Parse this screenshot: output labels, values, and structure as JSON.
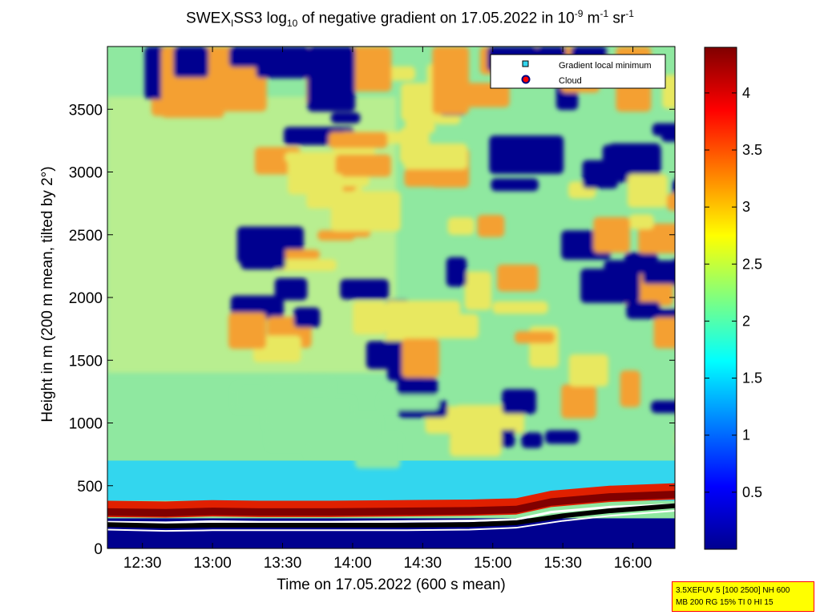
{
  "title": {
    "prefix": "SWEX",
    "sub1": "I",
    "mid": "SS3 log",
    "sub2": "10",
    "rest": " of negative gradient on 17.05.2022 in 10",
    "sup1": "-9",
    "unit1": " m",
    "sup2": "-1",
    "unit2": " sr",
    "sup3": "-1"
  },
  "xlabel": "Time on 17.05.2022 (600 s mean)",
  "ylabel": "Height in m (200 m mean, tilted by 2°)",
  "legend": {
    "min_label": "Gradient local minimum",
    "cloud_label": "Cloud"
  },
  "info": {
    "line1": "3.5XEFUV 5 [100 2500] NH 600",
    "line2": "MB 200 RG 15% TI 0 HI 15"
  },
  "colors": {
    "dark_blue": "#00008f",
    "cyan": "#33d6ee",
    "light_green": "#8fe8a0",
    "yellow": "#e8e860",
    "orange": "#f4a030",
    "red": "#e02000",
    "dark_red": "#800000",
    "white": "#ffffff",
    "black": "#000000"
  },
  "chart_data": {
    "type": "heatmap",
    "x_ticks": [
      "12:30",
      "13:00",
      "13:30",
      "14:00",
      "14:30",
      "15:00",
      "15:30",
      "16:00"
    ],
    "x_tick_minutes": [
      750,
      780,
      810,
      840,
      870,
      900,
      930,
      960
    ],
    "xlim_minutes": [
      735,
      978
    ],
    "y_ticks": [
      0,
      500,
      1000,
      1500,
      2000,
      2500,
      3000,
      3500
    ],
    "ylim": [
      0,
      4000
    ],
    "colorbar": {
      "ticks": [
        "0.5",
        "1",
        "1.5",
        "2",
        "2.5",
        "3",
        "3.5",
        "4"
      ],
      "tick_values": [
        0.5,
        1,
        1.5,
        2,
        2.5,
        3,
        3.5,
        4
      ],
      "range": [
        0,
        4.4
      ],
      "colormap": "jet"
    },
    "gradient_minimum_height": [
      {
        "t": 735,
        "h": 190
      },
      {
        "t": 760,
        "h": 180
      },
      {
        "t": 780,
        "h": 185
      },
      {
        "t": 800,
        "h": 185
      },
      {
        "t": 830,
        "h": 185
      },
      {
        "t": 860,
        "h": 185
      },
      {
        "t": 890,
        "h": 190
      },
      {
        "t": 910,
        "h": 205
      },
      {
        "t": 930,
        "h": 260
      },
      {
        "t": 950,
        "h": 300
      },
      {
        "t": 978,
        "h": 340
      }
    ],
    "cloud_base_height": [
      {
        "t": 735,
        "h": 360
      },
      {
        "t": 760,
        "h": 355
      },
      {
        "t": 780,
        "h": 365
      },
      {
        "t": 800,
        "h": 360
      },
      {
        "t": 830,
        "h": 360
      },
      {
        "t": 860,
        "h": 365
      },
      {
        "t": 890,
        "h": 370
      },
      {
        "t": 910,
        "h": 380
      },
      {
        "t": 925,
        "h": 440
      },
      {
        "t": 950,
        "h": 480
      },
      {
        "t": 978,
        "h": 500
      }
    ]
  }
}
